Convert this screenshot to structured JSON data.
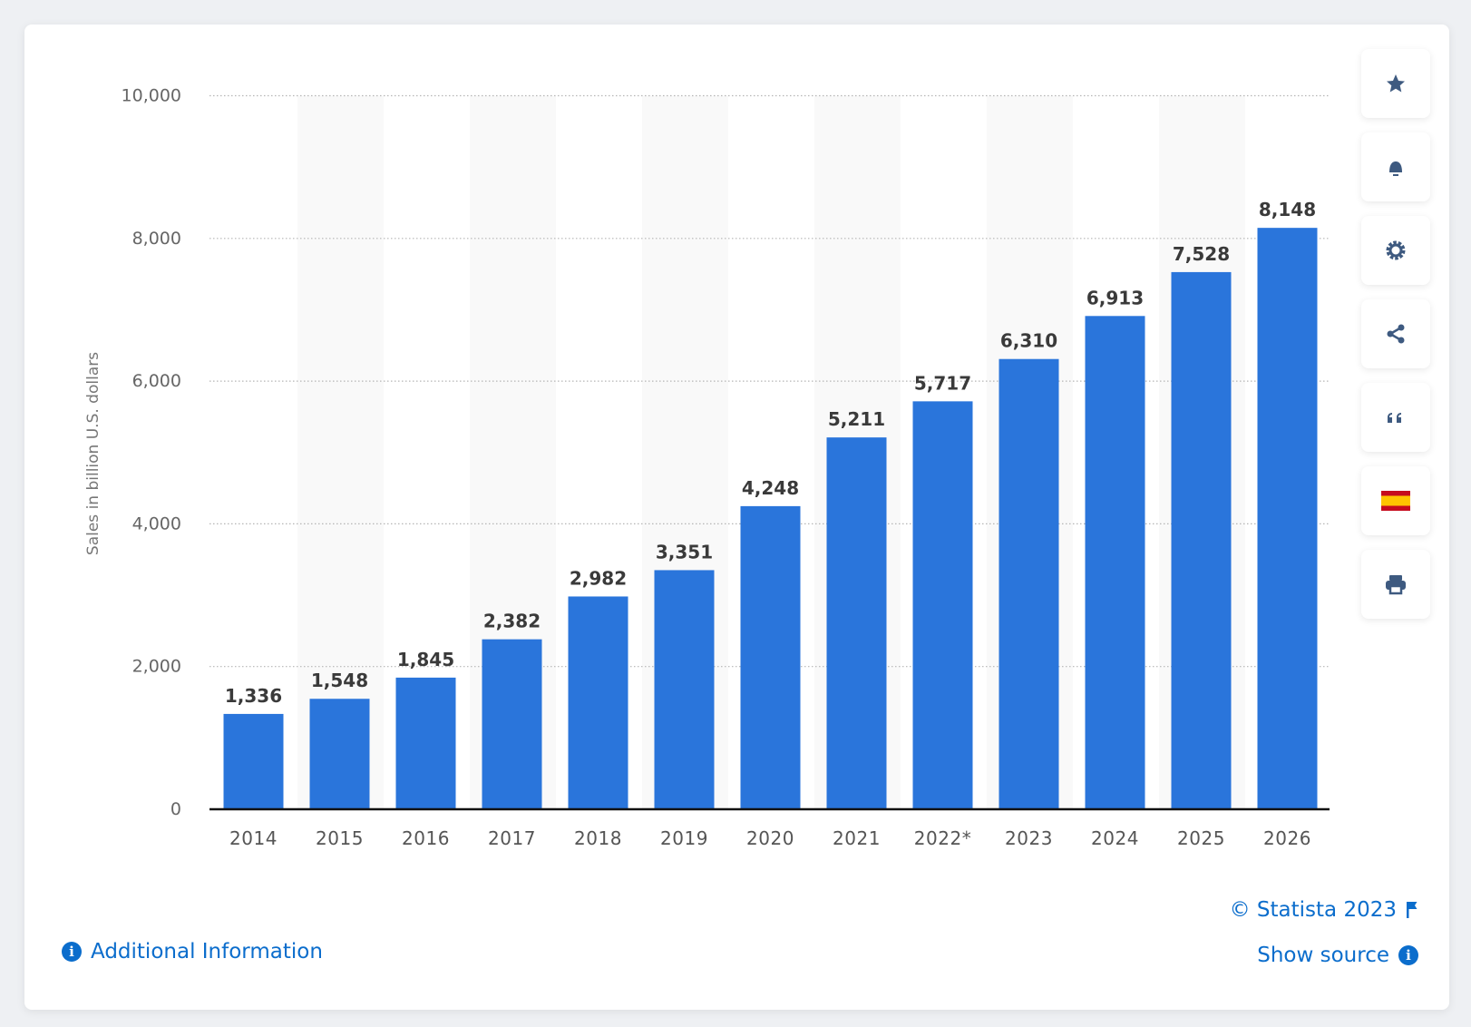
{
  "chart_data": {
    "type": "bar",
    "categories": [
      "2014",
      "2015",
      "2016",
      "2017",
      "2018",
      "2019",
      "2020",
      "2021",
      "2022*",
      "2023",
      "2024",
      "2025",
      "2026"
    ],
    "values": [
      1336,
      1548,
      1845,
      2382,
      2982,
      3351,
      4248,
      5211,
      5717,
      6310,
      6913,
      7528,
      8148
    ],
    "data_labels": [
      "1,336",
      "1,548",
      "1,845",
      "2,382",
      "2,982",
      "3,351",
      "4,248",
      "5,211",
      "5,717",
      "6,310",
      "6,913",
      "7,528",
      "8,148"
    ],
    "ylabel": "Sales in billion U.S. dollars",
    "xlabel": "",
    "ylim": [
      0,
      10000
    ],
    "yticks": [
      0,
      2000,
      4000,
      6000,
      8000,
      10000
    ],
    "ytick_labels": [
      "0",
      "2,000",
      "4,000",
      "6,000",
      "8,000",
      "10,000"
    ],
    "grid": true,
    "bar_color": "#2a75db"
  },
  "sidebar": {
    "buttons": [
      {
        "icon": "star-icon"
      },
      {
        "icon": "bell-icon"
      },
      {
        "icon": "gear-icon"
      },
      {
        "icon": "share-icon"
      },
      {
        "icon": "quote-icon"
      },
      {
        "icon": "spain-flag-icon"
      },
      {
        "icon": "print-icon"
      }
    ],
    "icon_color": "#3e5a80"
  },
  "footer": {
    "copyright": "© Statista 2023",
    "show_source": "Show source",
    "additional_info": "Additional Information",
    "link_color": "#0b6dcc"
  }
}
